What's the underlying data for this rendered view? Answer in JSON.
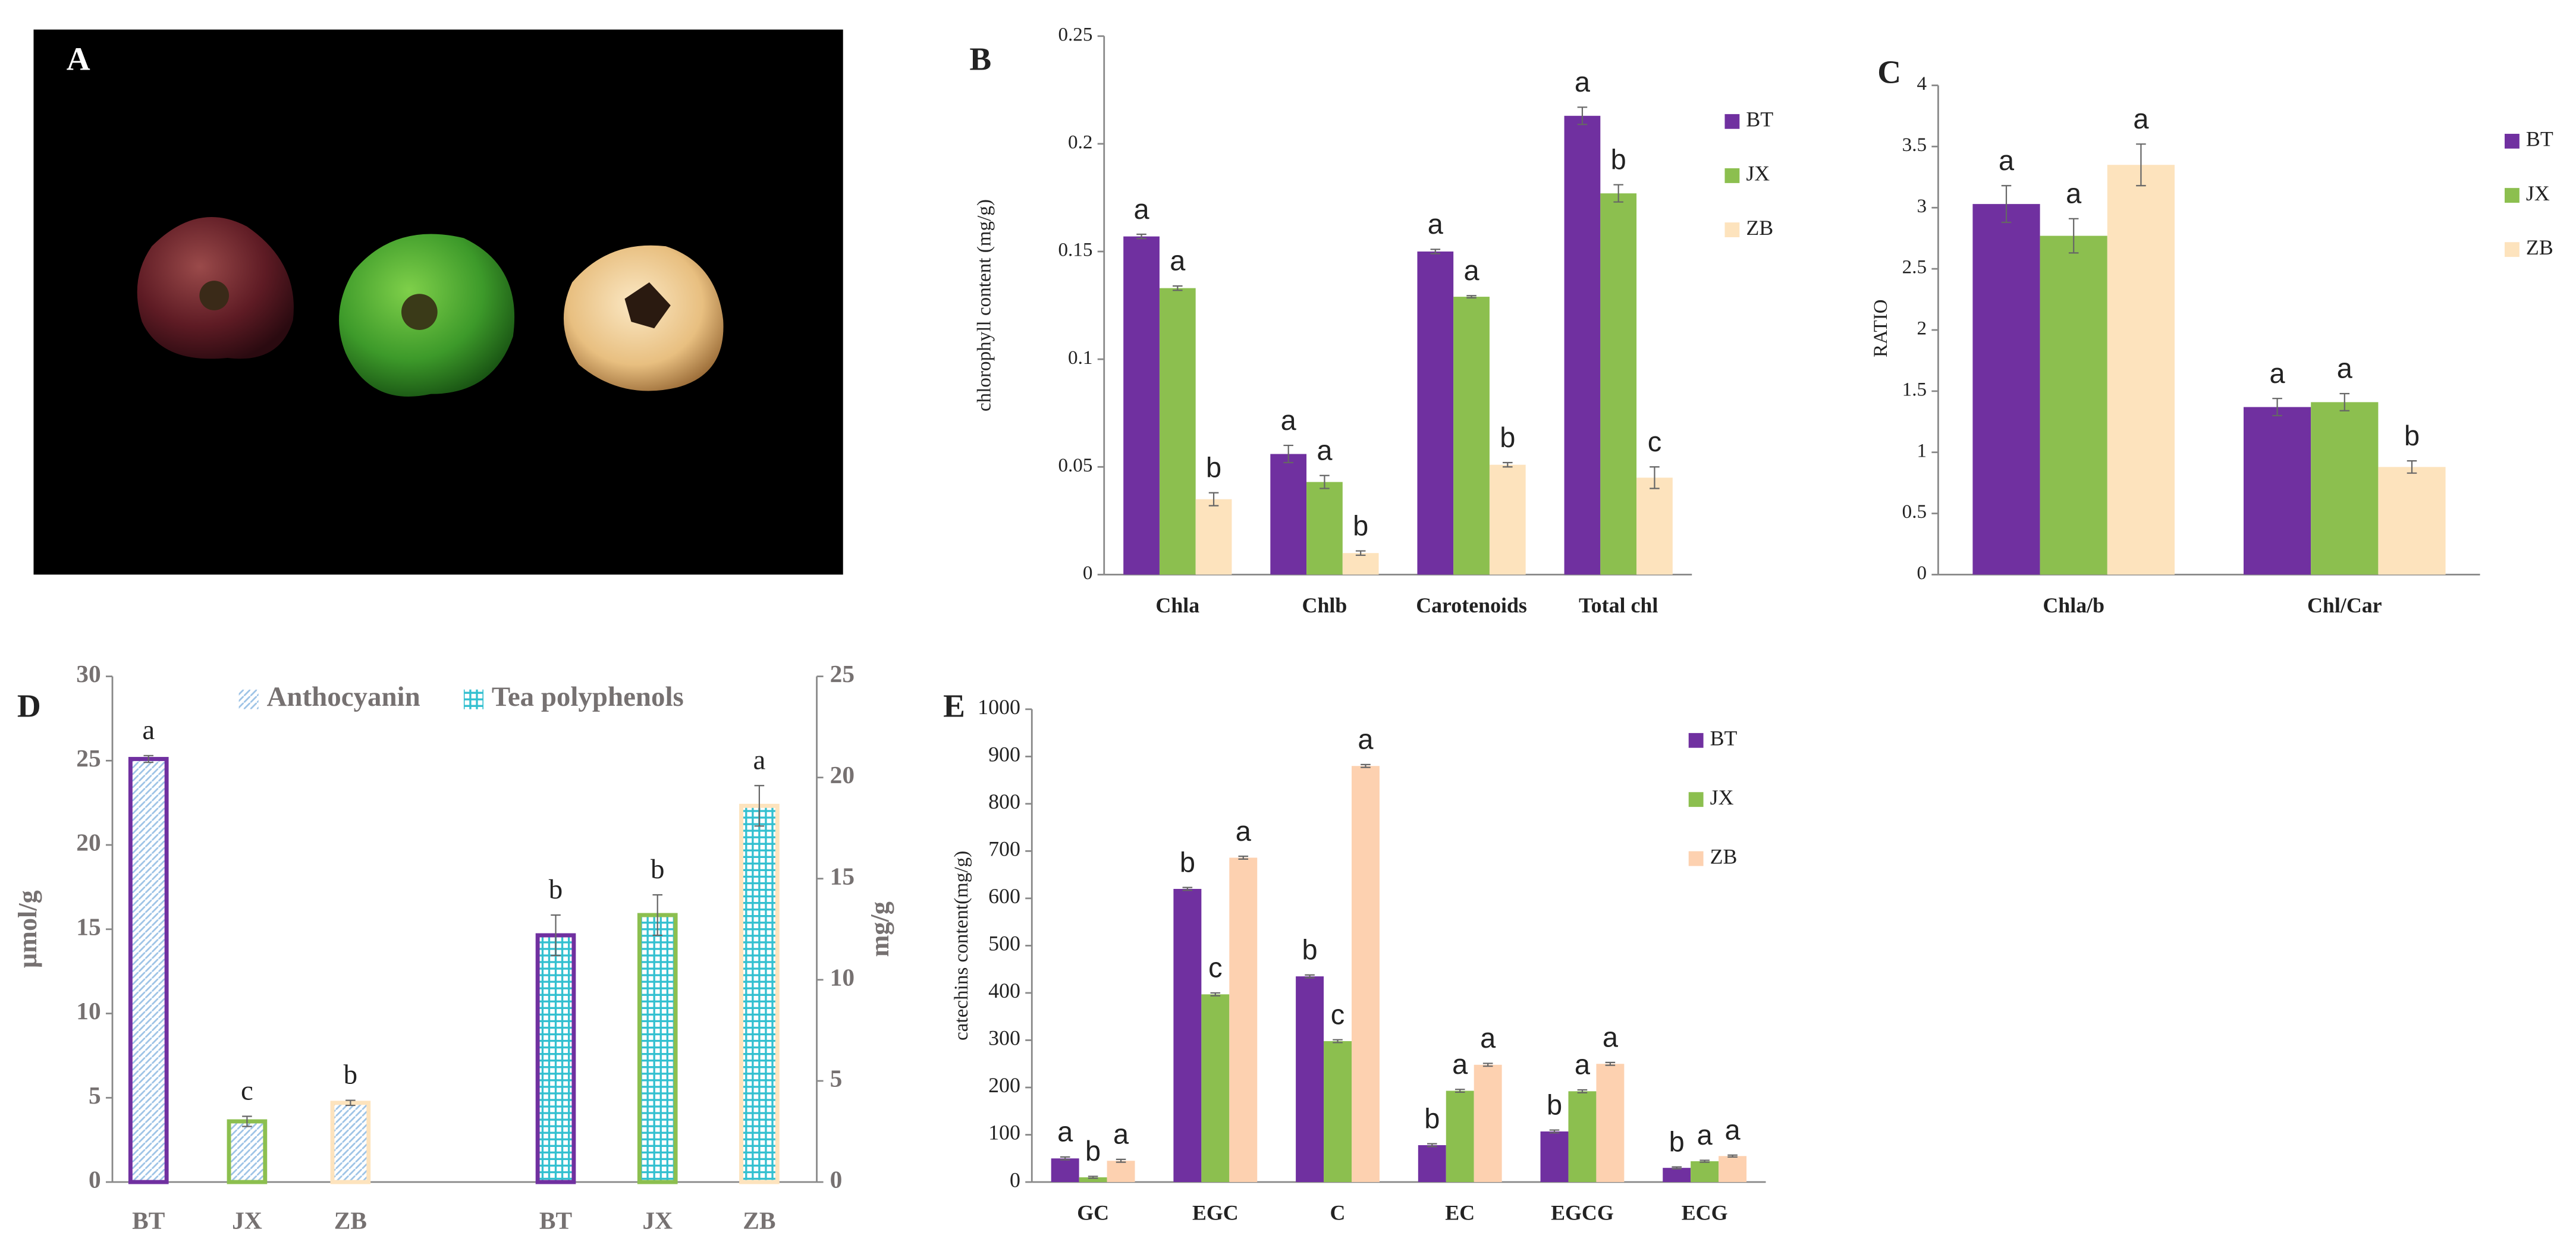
{
  "photo": {
    "label": "A"
  },
  "chart_data": [
    {
      "type": "bar",
      "panel": "B",
      "ylabel": "chlorophyll content (mg/g)",
      "categories": [
        "Chla",
        "Chlb",
        "Carotenoids",
        "Total chl"
      ],
      "series": [
        {
          "name": "BT",
          "color": "#7030a0",
          "values": [
            0.157,
            0.056,
            0.15,
            0.213
          ],
          "errors": [
            0.001,
            0.004,
            0.001,
            0.004
          ],
          "letters": [
            "a",
            "a",
            "a",
            "a"
          ]
        },
        {
          "name": "JX",
          "color": "#8cbf4f",
          "values": [
            0.133,
            0.043,
            0.129,
            0.177
          ],
          "errors": [
            0.001,
            0.003,
            0.0005,
            0.004
          ],
          "letters": [
            "a",
            "a",
            "a",
            "b"
          ]
        },
        {
          "name": "ZB",
          "color": "#fde3bd",
          "values": [
            0.035,
            0.01,
            0.051,
            0.045
          ],
          "errors": [
            0.003,
            0.001,
            0.001,
            0.005
          ],
          "letters": [
            "b",
            "b",
            "b",
            "c"
          ]
        }
      ],
      "ylim": [
        0,
        0.25
      ],
      "yticks": [
        0,
        0.05,
        0.1,
        0.15,
        0.2,
        0.25
      ],
      "legend": "right"
    },
    {
      "type": "bar",
      "panel": "C",
      "ylabel": "RATIO",
      "categories": [
        "Chla/b",
        "Chl/Car"
      ],
      "series": [
        {
          "name": "BT",
          "color": "#7030a0",
          "values": [
            3.03,
            1.37
          ],
          "errors": [
            0.15,
            0.07
          ],
          "letters": [
            "a",
            "a"
          ]
        },
        {
          "name": "JX",
          "color": "#8cbf4f",
          "values": [
            2.77,
            1.41
          ],
          "errors": [
            0.14,
            0.07
          ],
          "letters": [
            "a",
            "a"
          ]
        },
        {
          "name": "ZB",
          "color": "#fde3bd",
          "values": [
            3.35,
            0.88
          ],
          "errors": [
            0.17,
            0.05
          ],
          "letters": [
            "a",
            "b"
          ]
        }
      ],
      "ylim": [
        0,
        4
      ],
      "yticks": [
        0,
        0.5,
        1,
        1.5,
        2,
        2.5,
        3,
        3.5,
        4
      ],
      "legend": "right"
    },
    {
      "type": "bar",
      "panel": "D",
      "ylabel": "µmol/g",
      "y2label": "mg/g",
      "categories": [
        "BT",
        "JX",
        "ZB",
        "BT",
        "JX",
        "ZB"
      ],
      "outline_colors": [
        "#7030a0",
        "#8cbf4f",
        "#fde3bd",
        "#7030a0",
        "#8cbf4f",
        "#fde3bd"
      ],
      "series": [
        {
          "name": "Anthocyanin",
          "color": "#9dc3e6",
          "values": [
            25.1,
            3.6,
            4.7,
            null,
            null,
            null
          ],
          "errors": [
            0.2,
            0.3,
            0.15,
            null,
            null,
            null
          ],
          "letters": [
            "a",
            "c",
            "b",
            null,
            null,
            null
          ]
        },
        {
          "name": "Tea polyphenols",
          "color": "#33c0d0",
          "axis": "y2",
          "values": [
            null,
            null,
            null,
            12.2,
            13.2,
            18.6
          ],
          "errors": [
            null,
            null,
            null,
            1.0,
            1.0,
            1.0
          ],
          "letters": [
            null,
            null,
            null,
            "b",
            "b",
            "a"
          ]
        }
      ],
      "ylim": [
        0,
        30
      ],
      "yticks": [
        0,
        5,
        10,
        15,
        20,
        25,
        30
      ],
      "y2lim": [
        0,
        25
      ],
      "y2ticks": [
        0,
        5,
        10,
        15,
        20,
        25
      ],
      "legend": "top"
    },
    {
      "type": "bar",
      "panel": "E",
      "ylabel": "catechins content(mg/g)",
      "categories": [
        "GC",
        "EGC",
        "C",
        "EC",
        "EGCG",
        "ECG"
      ],
      "series": [
        {
          "name": "BT",
          "color": "#7030a0",
          "values": [
            50,
            620,
            435,
            78,
            107,
            30
          ],
          "errors": [
            3,
            3,
            3,
            3,
            3,
            2
          ],
          "letters": [
            "a",
            "b",
            "b",
            "b",
            "b",
            "b"
          ]
        },
        {
          "name": "JX",
          "color": "#8cbf4f",
          "values": [
            10,
            397,
            298,
            193,
            192,
            44
          ],
          "errors": [
            2,
            3,
            3,
            3,
            3,
            2
          ],
          "letters": [
            "b",
            "c",
            "c",
            "a",
            "a",
            "a"
          ]
        },
        {
          "name": "ZB",
          "color": "#fdd1b0",
          "values": [
            45,
            686,
            880,
            248,
            250,
            55
          ],
          "errors": [
            3,
            3,
            3,
            3,
            3,
            2
          ],
          "letters": [
            "a",
            "a",
            "a",
            "a",
            "a",
            "a"
          ]
        }
      ],
      "ylim": [
        0,
        1000
      ],
      "yticks": [
        0,
        100,
        200,
        300,
        400,
        500,
        600,
        700,
        800,
        900,
        1000
      ],
      "legend": "right"
    }
  ]
}
